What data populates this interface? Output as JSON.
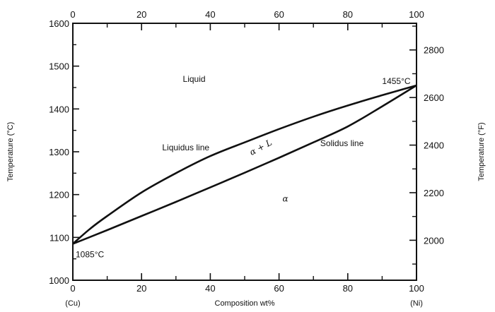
{
  "chart_data": {
    "type": "line",
    "xlabel": "Composition  wt%",
    "ylabel_left": "Temperature (°C)",
    "ylabel_right": "Temperature (°F)",
    "x_end_labels": {
      "left": "(Cu)",
      "right": "(Ni)"
    },
    "xlim": [
      0,
      100
    ],
    "ylim": [
      1000,
      1600
    ],
    "x_ticks": [
      0,
      20,
      40,
      60,
      80,
      100
    ],
    "x_ticks_top": [
      0,
      20,
      40,
      60,
      80,
      100
    ],
    "y_ticks_left": [
      1000,
      1100,
      1200,
      1300,
      1400,
      1500,
      1600
    ],
    "y_ticks_right": [
      2000,
      2200,
      2400,
      2600,
      2800
    ],
    "grid": false,
    "series": [
      {
        "name": "Liquidus line",
        "x": [
          0,
          5,
          10,
          20,
          30,
          40,
          50,
          60,
          70,
          80,
          90,
          100
        ],
        "y": [
          1085,
          1120,
          1150,
          1205,
          1250,
          1290,
          1322,
          1353,
          1382,
          1408,
          1432,
          1455
        ]
      },
      {
        "name": "Solidus line",
        "x": [
          0,
          10,
          20,
          30,
          40,
          50,
          60,
          70,
          80,
          90,
          100
        ],
        "y": [
          1085,
          1117,
          1150,
          1183,
          1217,
          1251,
          1286,
          1322,
          1359,
          1406,
          1455
        ]
      }
    ],
    "annotations": {
      "liquid": "Liquid",
      "liquidus": "Liquidus line",
      "solidus": "Solidus line",
      "two_phase": "α + L",
      "alpha": "α",
      "melt_ni": "1455°C",
      "melt_cu": "1085°C"
    }
  }
}
